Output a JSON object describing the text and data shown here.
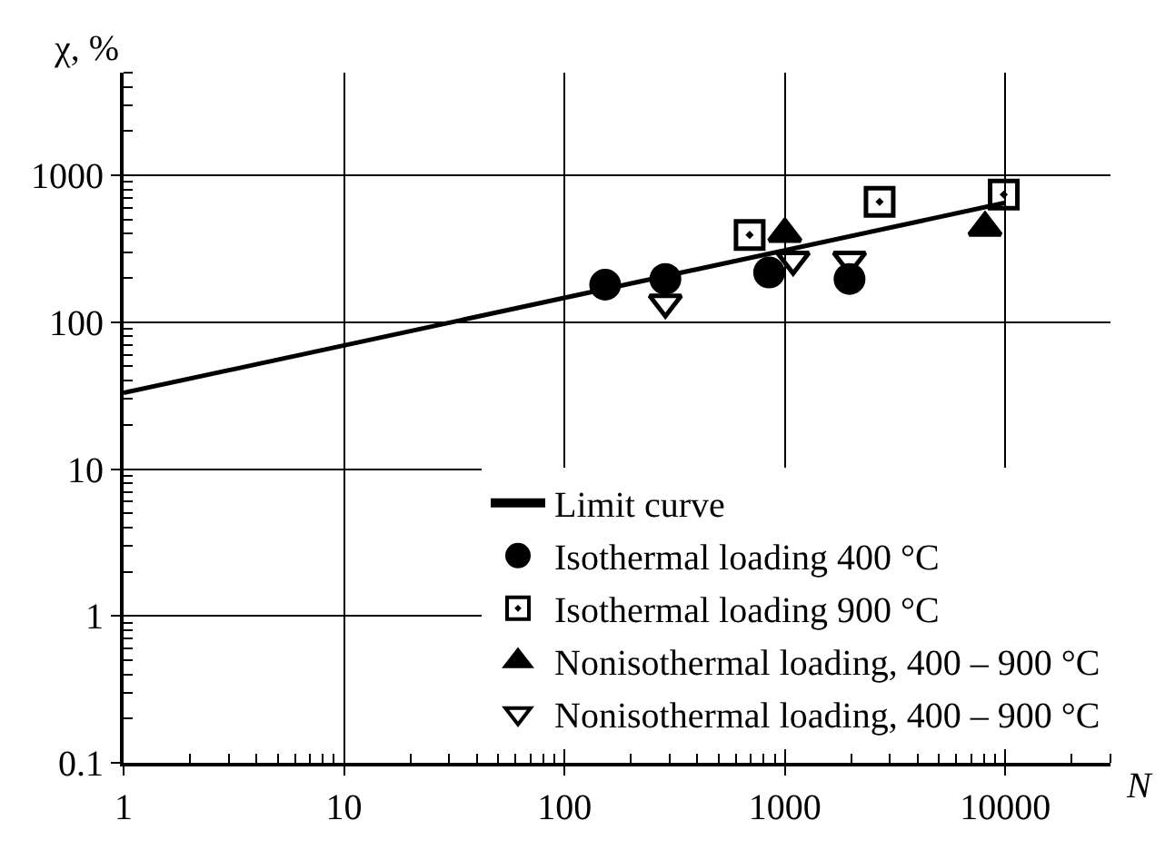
{
  "chart_data": {
    "type": "scatter",
    "xlabel": "N",
    "ylabel": "χ, %",
    "log": "xy",
    "xlim": [
      1,
      30000
    ],
    "ylim": [
      0.1,
      5000
    ],
    "xticks": [
      1,
      10,
      100,
      1000,
      10000
    ],
    "yticks": [
      0.1,
      1,
      10,
      100,
      1000
    ],
    "grid": true,
    "legend": "bottom right",
    "series": [
      {
        "name": "Limit curve",
        "type": "line",
        "color": "#000000",
        "x": [
          1,
          10000
        ],
        "values": [
          33,
          650
        ],
        "line_style": "solid",
        "marker": "none"
      },
      {
        "name": "Isothermal loading 400 °C",
        "color": "#000000",
        "marker": "circle",
        "x": [
          153,
          287,
          848,
          1965
        ],
        "values": [
          180,
          197,
          218,
          197
        ]
      },
      {
        "name": "Isothermal loading 900 °C",
        "color": "#000000",
        "marker": "square",
        "x": [
          692,
          2690,
          9840
        ],
        "values": [
          393,
          660,
          740
        ]
      },
      {
        "name": "Nonisothermal loading, 400 – 900 °C",
        "color": "#000000",
        "marker": "triangle",
        "x": [
          1000,
          8090
        ],
        "values": [
          400,
          440
        ]
      },
      {
        "name": "Nonisothermal loading, 400 – 900 °C",
        "color": "#000000",
        "marker": "triangle-down",
        "x": [
          287,
          1090,
          1965
        ],
        "values": [
          136,
          266,
          266
        ]
      }
    ]
  }
}
